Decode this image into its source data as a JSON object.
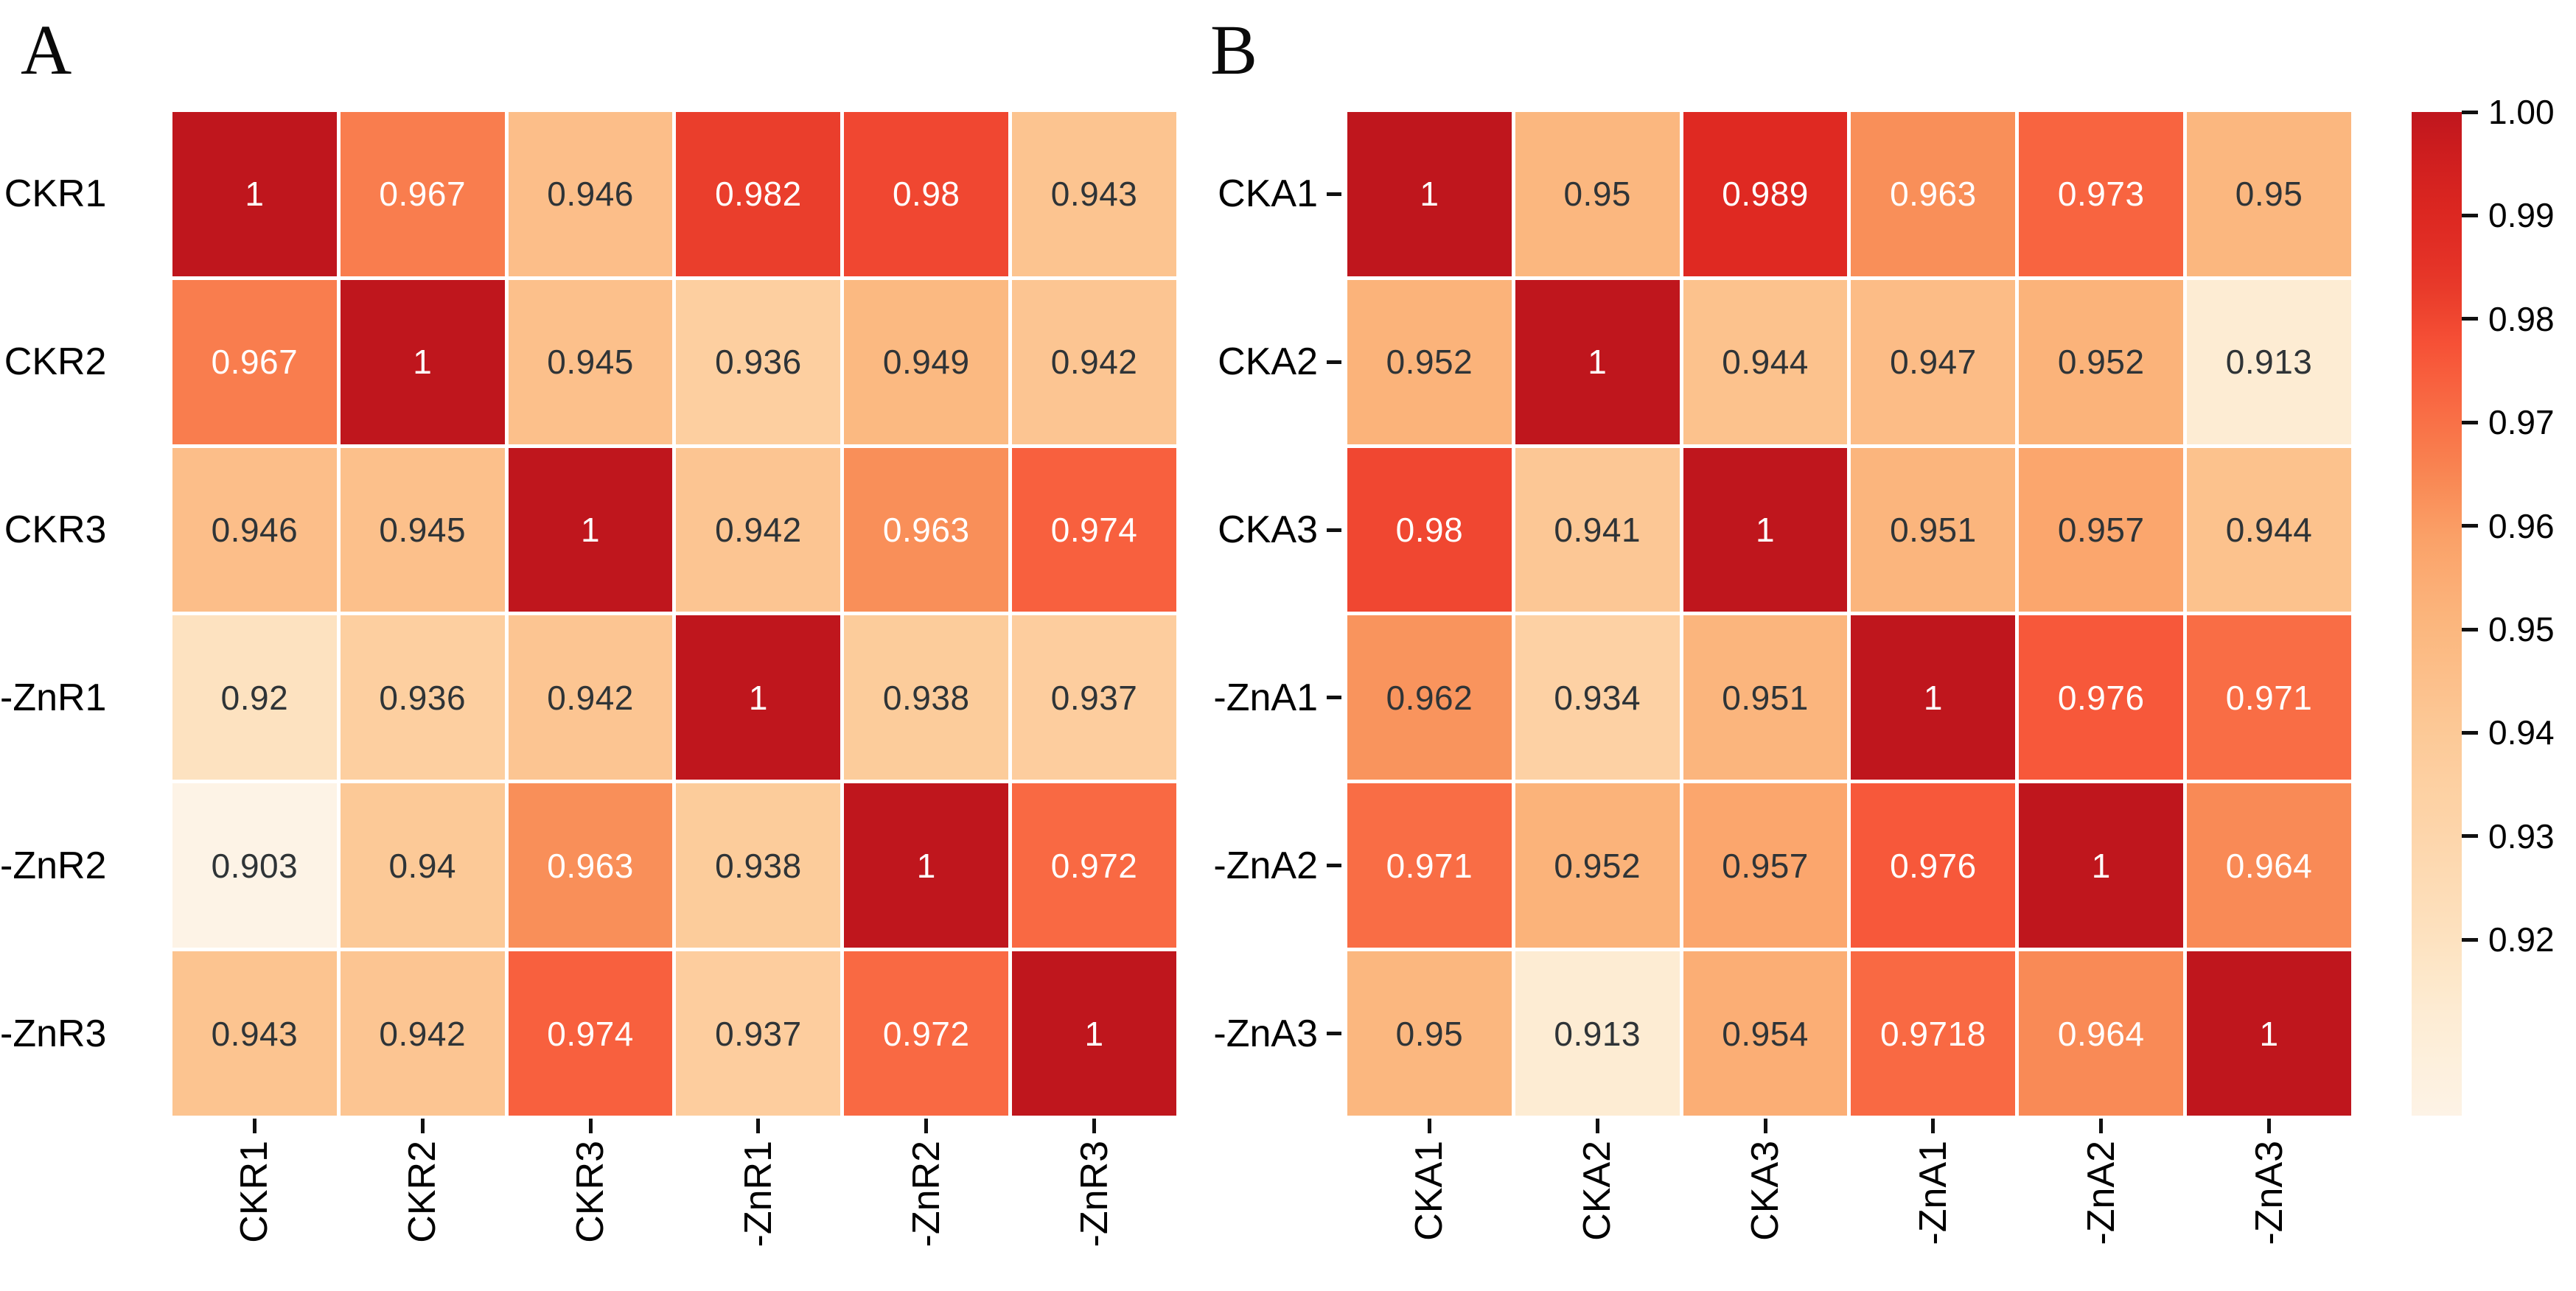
{
  "chart_data": [
    {
      "type": "heatmap",
      "title": "A",
      "x_labels": [
        "CKR1",
        "CKR2",
        "CKR3",
        "-ZnR1",
        "-ZnR2",
        "-ZnR3"
      ],
      "y_labels": [
        "CKR1",
        "CKR2",
        "CKR3",
        "-ZnR1",
        "-ZnR2",
        "-ZnR3"
      ],
      "values": [
        [
          1,
          0.967,
          0.946,
          0.982,
          0.98,
          0.943
        ],
        [
          0.967,
          1,
          0.945,
          0.936,
          0.949,
          0.942
        ],
        [
          0.946,
          0.945,
          1,
          0.942,
          0.963,
          0.974
        ],
        [
          0.92,
          0.936,
          0.942,
          1,
          0.938,
          0.937
        ],
        [
          0.903,
          0.94,
          0.963,
          0.938,
          1,
          0.972
        ],
        [
          0.943,
          0.942,
          0.974,
          0.937,
          0.972,
          1
        ]
      ],
      "labels": [
        [
          "1",
          "0.967",
          "0.946",
          "0.982",
          "0.98",
          "0.943"
        ],
        [
          "0.967",
          "1",
          "0.945",
          "0.936",
          "0.949",
          "0.942"
        ],
        [
          "0.946",
          "0.945",
          "1",
          "0.942",
          "0.963",
          "0.974"
        ],
        [
          "0.92",
          "0.936",
          "0.942",
          "1",
          "0.938",
          "0.937"
        ],
        [
          "0.903",
          "0.94",
          "0.963",
          "0.938",
          "1",
          "0.972"
        ],
        [
          "0.943",
          "0.942",
          "0.974",
          "0.937",
          "0.972",
          "1"
        ]
      ],
      "y_ticks_visible": false
    },
    {
      "type": "heatmap",
      "title": "B",
      "x_labels": [
        "CKA1",
        "CKA2",
        "CKA3",
        "-ZnA1",
        "-ZnA2",
        "-ZnA3"
      ],
      "y_labels": [
        "CKA1",
        "CKA2",
        "CKA3",
        "-ZnA1",
        "-ZnA2",
        "-ZnA3"
      ],
      "values": [
        [
          1,
          0.95,
          0.989,
          0.963,
          0.973,
          0.95
        ],
        [
          0.952,
          1,
          0.944,
          0.947,
          0.952,
          0.913
        ],
        [
          0.98,
          0.941,
          1,
          0.951,
          0.957,
          0.944
        ],
        [
          0.962,
          0.934,
          0.951,
          1,
          0.976,
          0.971
        ],
        [
          0.971,
          0.952,
          0.957,
          0.976,
          1,
          0.964
        ],
        [
          0.95,
          0.913,
          0.954,
          0.9718,
          0.964,
          1
        ]
      ],
      "labels": [
        [
          "1",
          "0.95",
          "0.989",
          "0.963",
          "0.973",
          "0.95"
        ],
        [
          "0.952",
          "1",
          "0.944",
          "0.947",
          "0.952",
          "0.913"
        ],
        [
          "0.98",
          "0.941",
          "1",
          "0.951",
          "0.957",
          "0.944"
        ],
        [
          "0.962",
          "0.934",
          "0.951",
          "1",
          "0.976",
          "0.971"
        ],
        [
          "0.971",
          "0.952",
          "0.957",
          "0.976",
          "1",
          "0.964"
        ],
        [
          "0.95",
          "0.913",
          "0.954",
          "0.9718",
          "0.964",
          "1"
        ]
      ],
      "y_ticks_visible": true
    },
    {
      "type": "colorbar",
      "vmin": 0.903,
      "vmax": 1.0,
      "tick_labels": [
        "1.00",
        "0.99",
        "0.98",
        "0.97",
        "0.96",
        "0.95",
        "0.94",
        "0.93",
        "0.92"
      ],
      "tick_values": [
        1.0,
        0.99,
        0.98,
        0.97,
        0.96,
        0.95,
        0.94,
        0.93,
        0.92
      ]
    }
  ],
  "colormap": {
    "name": "reds-sequential",
    "anchors": [
      [
        0.903,
        "#fdf3e6"
      ],
      [
        0.913,
        "#fdecd3"
      ],
      [
        0.92,
        "#fde2c0"
      ],
      [
        0.93,
        "#fdd6ab"
      ],
      [
        0.935,
        "#fdd0a2"
      ],
      [
        0.94,
        "#fcc997"
      ],
      [
        0.945,
        "#fcc08b"
      ],
      [
        0.95,
        "#fbb77f"
      ],
      [
        0.955,
        "#fbac73"
      ],
      [
        0.96,
        "#fa9d64"
      ],
      [
        0.963,
        "#f98f59"
      ],
      [
        0.966,
        "#f98150"
      ],
      [
        0.97,
        "#f97147"
      ],
      [
        0.974,
        "#f8603e"
      ],
      [
        0.978,
        "#f64f35"
      ],
      [
        0.982,
        "#ea3e2c"
      ],
      [
        0.986,
        "#e33026"
      ],
      [
        0.99,
        "#dd2721"
      ],
      [
        0.995,
        "#d11f1f"
      ],
      [
        1.0,
        "#bf161d"
      ]
    ],
    "white_text_threshold": 0.9625,
    "dark_text": "#2f3437",
    "white_text": "#ffffff"
  }
}
